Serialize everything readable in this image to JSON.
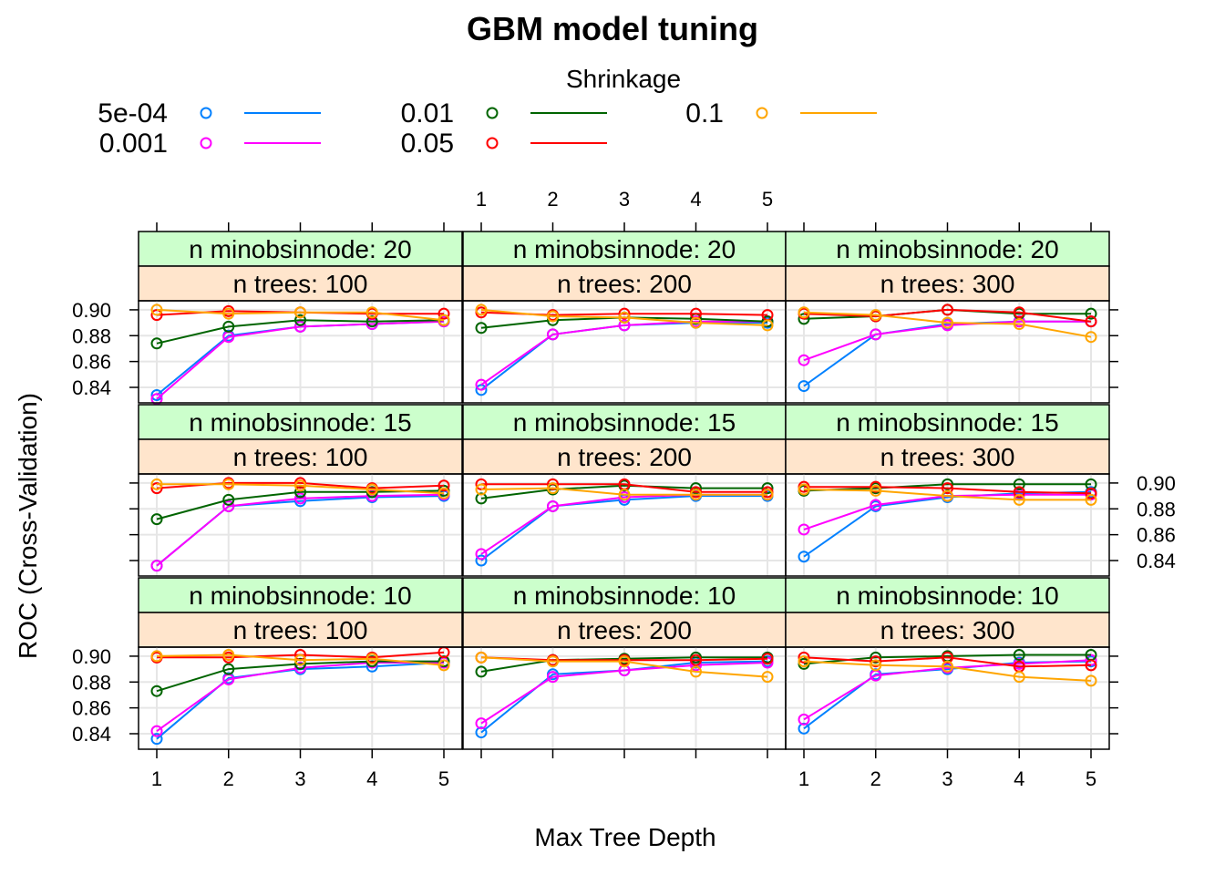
{
  "chart_data": {
    "type": "line",
    "title": "GBM model tuning",
    "xlabel": "Max Tree Depth",
    "ylabel": "ROC (Cross-Validation)",
    "legend": {
      "title": "Shrinkage",
      "placement": "top"
    },
    "x": [
      1,
      2,
      3,
      4,
      5
    ],
    "x_ticks": [
      "1",
      "2",
      "3",
      "4",
      "5"
    ],
    "y_ticks": [
      "0.84",
      "0.86",
      "0.88",
      "0.90"
    ],
    "ylim": [
      0.828,
      0.907
    ],
    "series": [
      {
        "name": "5e-04",
        "color": "#0080ff"
      },
      {
        "name": "0.001",
        "color": "#ff00ff"
      },
      {
        "name": "0.01",
        "color": "#006400"
      },
      {
        "name": "0.05",
        "color": "#ff0000"
      },
      {
        "name": "0.1",
        "color": "#ffa500"
      }
    ],
    "panels": [
      {
        "strip_top": "n minobsinnode: 20",
        "strip_bottom": "n trees: 100",
        "row": 0,
        "col": 0,
        "values": [
          [
            0.834,
            0.88,
            0.887,
            0.889,
            0.891
          ],
          [
            0.831,
            0.879,
            0.887,
            0.889,
            0.891
          ],
          [
            0.874,
            0.887,
            0.892,
            0.891,
            0.892
          ],
          [
            0.896,
            0.899,
            0.898,
            0.897,
            0.897
          ],
          [
            0.9,
            0.897,
            0.898,
            0.898,
            0.892
          ]
        ]
      },
      {
        "strip_top": "n minobsinnode: 20",
        "strip_bottom": "n trees: 200",
        "row": 0,
        "col": 1,
        "values": [
          [
            0.838,
            0.881,
            0.888,
            0.89,
            0.89
          ],
          [
            0.842,
            0.881,
            0.888,
            0.891,
            0.891
          ],
          [
            0.886,
            0.892,
            0.894,
            0.893,
            0.891
          ],
          [
            0.898,
            0.896,
            0.897,
            0.897,
            0.896
          ],
          [
            0.9,
            0.895,
            0.894,
            0.89,
            0.888
          ]
        ]
      },
      {
        "strip_top": "n minobsinnode: 20",
        "strip_bottom": "n trees: 300",
        "row": 0,
        "col": 2,
        "values": [
          [
            0.841,
            0.881,
            0.889,
            0.891,
            0.891
          ],
          [
            0.861,
            0.881,
            0.888,
            0.891,
            0.891
          ],
          [
            0.893,
            0.895,
            0.9,
            0.897,
            0.897
          ],
          [
            0.897,
            0.895,
            0.9,
            0.898,
            0.891
          ],
          [
            0.898,
            0.896,
            0.89,
            0.889,
            0.879
          ]
        ]
      },
      {
        "strip_top": "n minobsinnode: 15",
        "strip_bottom": "n trees: 100",
        "row": 1,
        "col": 0,
        "values": [
          [
            0.836,
            0.882,
            0.886,
            0.889,
            0.89
          ],
          [
            0.836,
            0.882,
            0.888,
            0.89,
            0.891
          ],
          [
            0.872,
            0.887,
            0.893,
            0.893,
            0.894
          ],
          [
            0.896,
            0.9,
            0.9,
            0.896,
            0.898
          ],
          [
            0.899,
            0.899,
            0.898,
            0.895,
            0.892
          ]
        ]
      },
      {
        "strip_top": "n minobsinnode: 15",
        "strip_bottom": "n trees: 200",
        "row": 1,
        "col": 1,
        "values": [
          [
            0.84,
            0.882,
            0.887,
            0.89,
            0.89
          ],
          [
            0.845,
            0.882,
            0.889,
            0.891,
            0.891
          ],
          [
            0.888,
            0.895,
            0.898,
            0.896,
            0.896
          ],
          [
            0.899,
            0.899,
            0.899,
            0.893,
            0.893
          ],
          [
            0.895,
            0.896,
            0.891,
            0.891,
            0.891
          ]
        ]
      },
      {
        "strip_top": "n minobsinnode: 15",
        "strip_bottom": "n trees: 300",
        "row": 1,
        "col": 2,
        "values": [
          [
            0.843,
            0.882,
            0.889,
            0.892,
            0.893
          ],
          [
            0.864,
            0.883,
            0.89,
            0.891,
            0.891
          ],
          [
            0.894,
            0.896,
            0.899,
            0.899,
            0.899
          ],
          [
            0.897,
            0.897,
            0.896,
            0.893,
            0.892
          ],
          [
            0.895,
            0.894,
            0.89,
            0.887,
            0.887
          ]
        ]
      },
      {
        "strip_top": "n minobsinnode: 10",
        "strip_bottom": "n trees: 100",
        "row": 2,
        "col": 0,
        "values": [
          [
            0.836,
            0.883,
            0.89,
            0.892,
            0.895
          ],
          [
            0.842,
            0.882,
            0.891,
            0.895,
            0.895
          ],
          [
            0.873,
            0.89,
            0.894,
            0.896,
            0.896
          ],
          [
            0.899,
            0.899,
            0.901,
            0.899,
            0.903
          ],
          [
            0.9,
            0.901,
            0.897,
            0.898,
            0.893
          ]
        ]
      },
      {
        "strip_top": "n minobsinnode: 10",
        "strip_bottom": "n trees: 200",
        "row": 2,
        "col": 1,
        "values": [
          [
            0.841,
            0.886,
            0.889,
            0.895,
            0.896
          ],
          [
            0.848,
            0.884,
            0.889,
            0.893,
            0.895
          ],
          [
            0.888,
            0.897,
            0.898,
            0.899,
            0.899
          ],
          [
            0.899,
            0.897,
            0.897,
            0.897,
            0.898
          ],
          [
            0.899,
            0.896,
            0.896,
            0.888,
            0.884
          ]
        ]
      },
      {
        "strip_top": "n minobsinnode: 10",
        "strip_bottom": "n trees: 300",
        "row": 2,
        "col": 2,
        "values": [
          [
            0.844,
            0.886,
            0.89,
            0.895,
            0.896
          ],
          [
            0.851,
            0.885,
            0.891,
            0.894,
            0.897
          ],
          [
            0.894,
            0.899,
            0.9,
            0.901,
            0.901
          ],
          [
            0.899,
            0.896,
            0.899,
            0.892,
            0.893
          ],
          [
            0.896,
            0.893,
            0.892,
            0.884,
            0.881
          ]
        ]
      }
    ]
  }
}
